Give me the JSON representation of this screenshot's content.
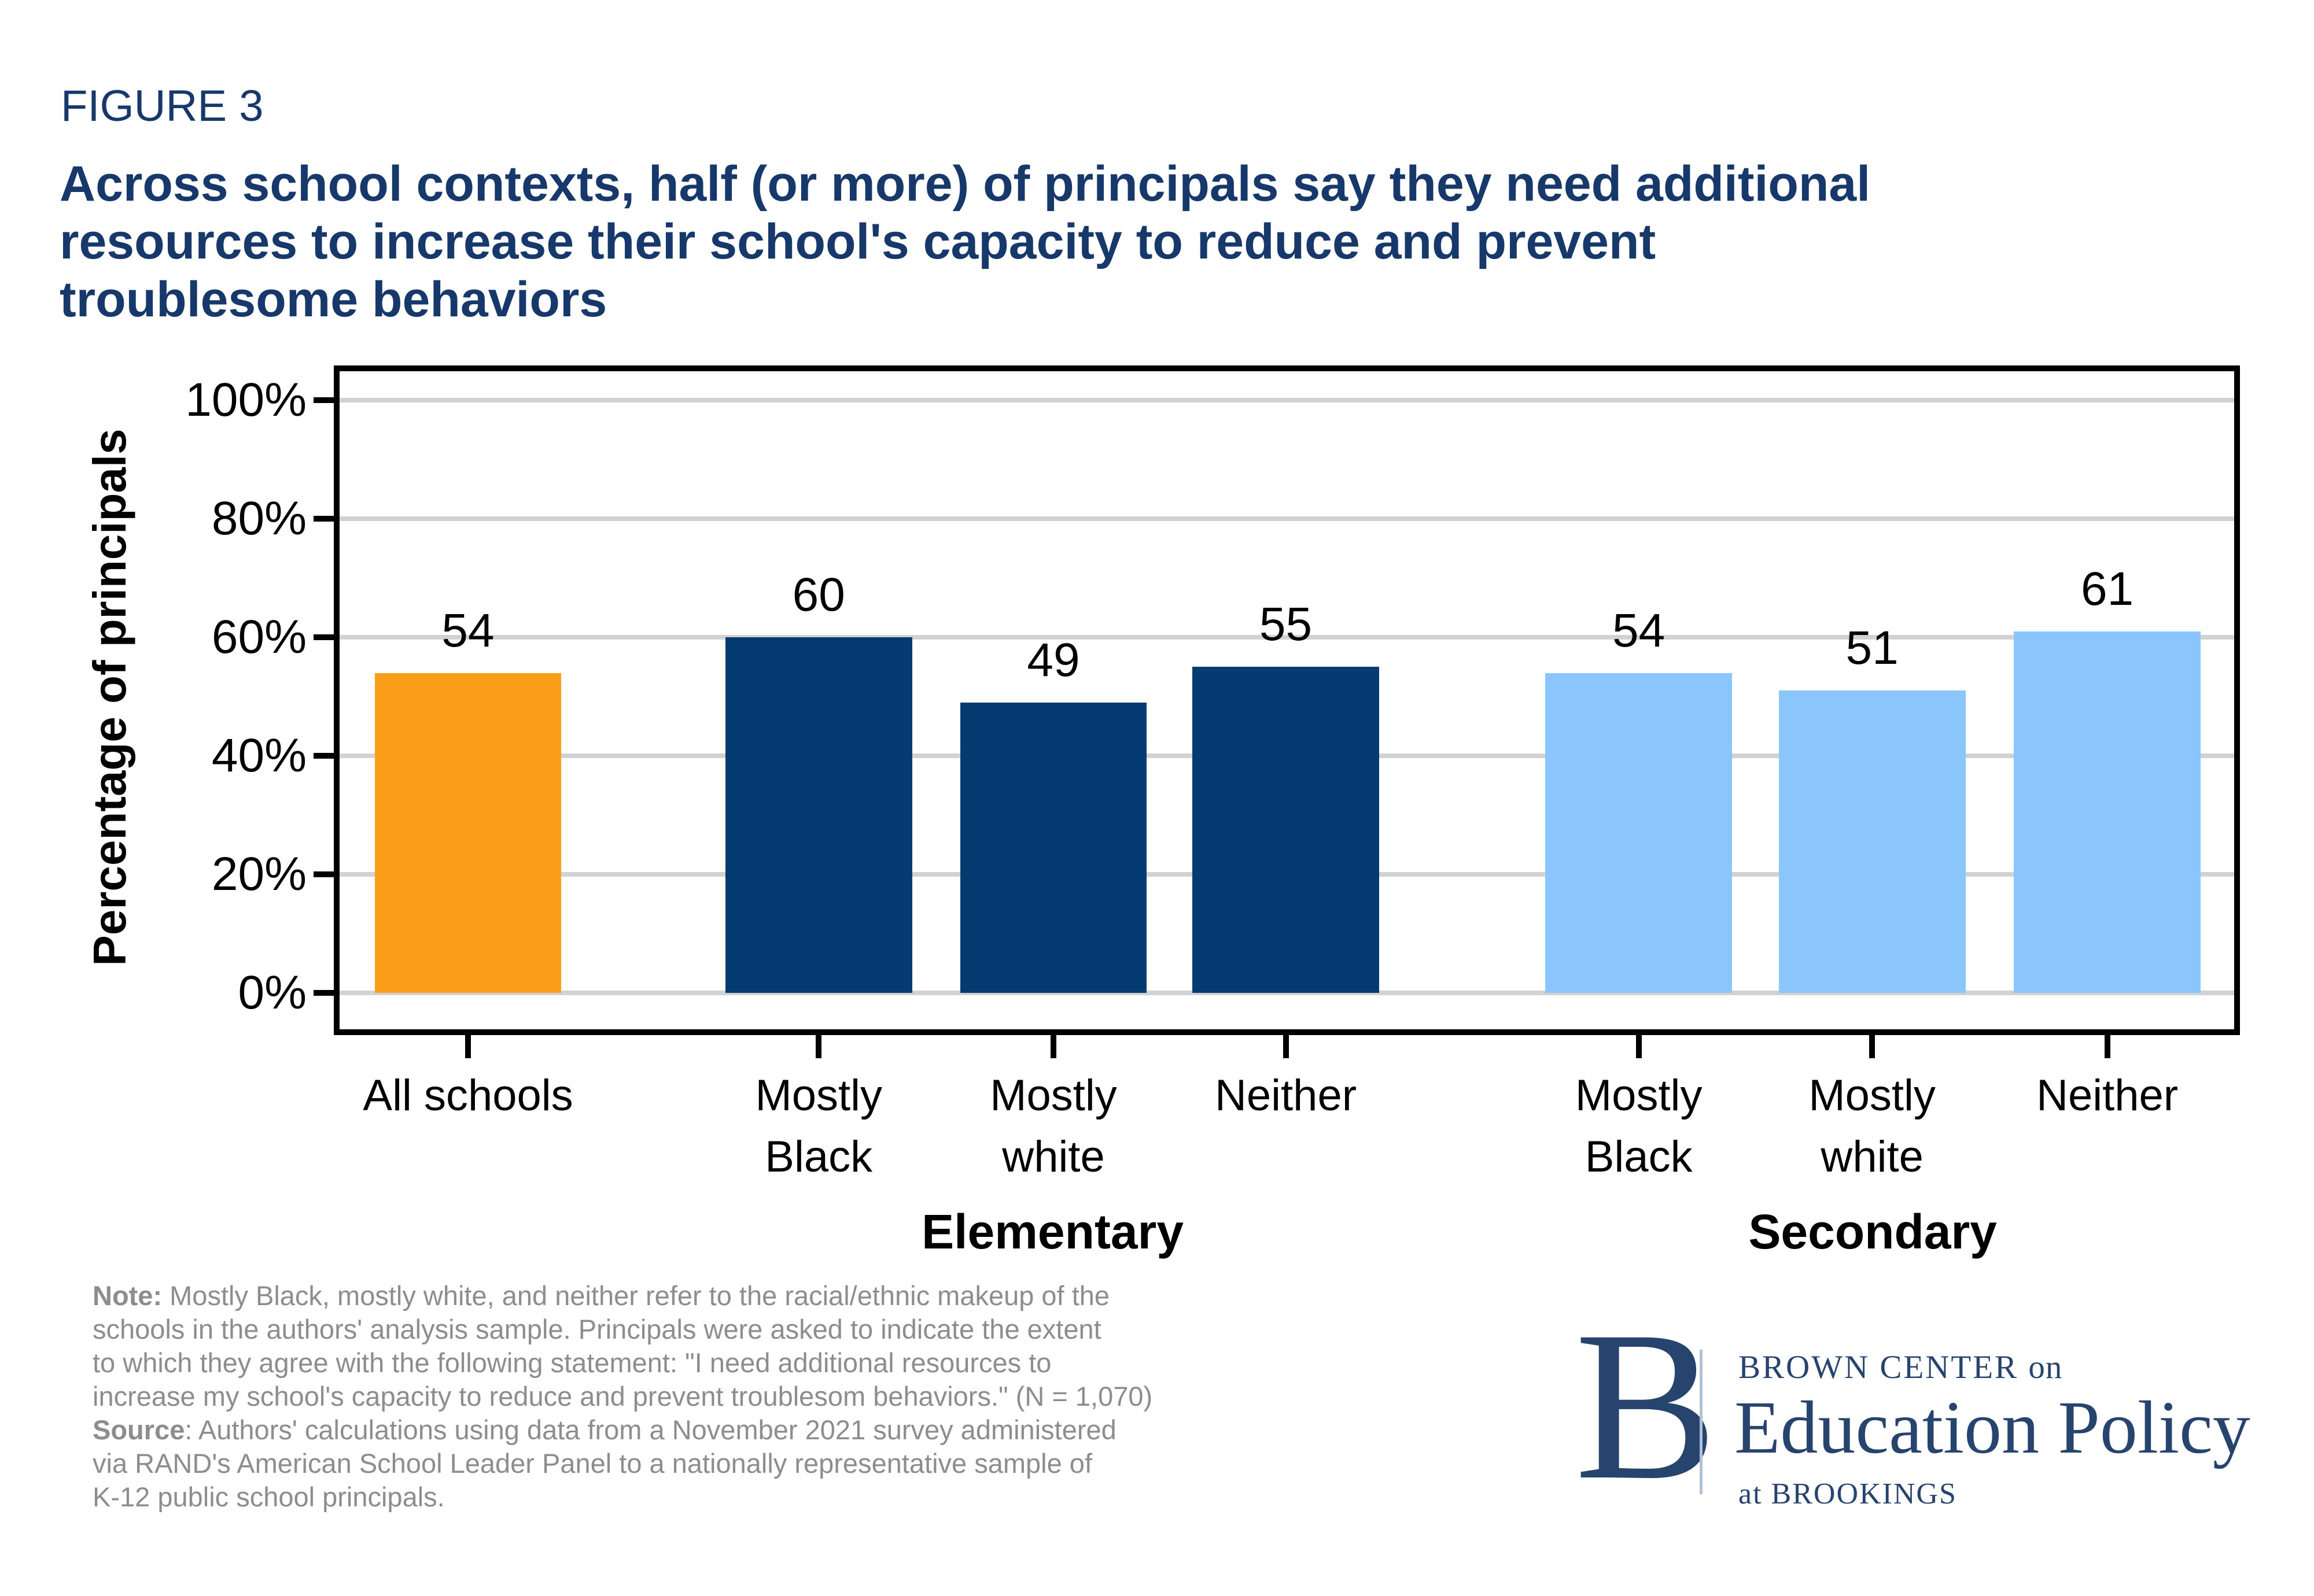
{
  "figure_label": "FIGURE 3",
  "title": {
    "lines": [
      "Across school contexts, half (or more) of principals say they need additional",
      "resources to increase their school's capacity to reduce and prevent",
      "troublesome behaviors"
    ],
    "color": "#17386B"
  },
  "chart_data": {
    "type": "bar",
    "title": "Across school contexts, half (or more) of principals say they need additional resources to increase their school's capacity to reduce and prevent troublesome behaviors",
    "ylabel": "Percentage of principals",
    "xlabel": "",
    "ylim": [
      0,
      100
    ],
    "yticks": [
      0,
      20,
      40,
      60,
      80,
      100
    ],
    "ytick_labels": [
      "0%",
      "20%",
      "40%",
      "60%",
      "80%",
      "100%"
    ],
    "grid": true,
    "legend_position": "none",
    "categories": [
      "All schools",
      "Mostly Black",
      "Mostly white",
      "Neither",
      "Mostly Black",
      "Mostly white",
      "Neither"
    ],
    "category_lines": [
      [
        "All schools"
      ],
      [
        "Mostly",
        "Black"
      ],
      [
        "Mostly",
        "white"
      ],
      [
        "Neither"
      ],
      [
        "Mostly",
        "Black"
      ],
      [
        "Mostly",
        "white"
      ],
      [
        "Neither"
      ]
    ],
    "values": [
      54,
      60,
      49,
      55,
      54,
      51,
      61
    ],
    "bar_colors": [
      "#FB9E19",
      "#043B71",
      "#043B71",
      "#043B71",
      "#8AC6FC",
      "#8AC6FC",
      "#8AC6FC"
    ],
    "value_labels_shown": true,
    "groups": [
      {
        "label": "Elementary",
        "bar_indexes": [
          1,
          2,
          3
        ]
      },
      {
        "label": "Secondary",
        "bar_indexes": [
          4,
          5,
          6
        ]
      }
    ],
    "colors": {
      "orange": "#FB9E19",
      "navy": "#043B71",
      "lightblue": "#8AC6FC",
      "gridline": "#D2D2D2",
      "axis": "#000000"
    }
  },
  "note": {
    "note_label": "Note:",
    "note_lines": [
      " Mostly Black, mostly white, and neither refer to the racial/ethnic makeup of the",
      "schools in the authors' analysis sample. Principals were asked to indicate the extent",
      "to which they agree with the following statement: \"I need additional resources to",
      "increase my school's capacity to reduce and prevent troublesom behaviors.\" (N = 1,070)"
    ],
    "source_label": "Source",
    "source_lines": [
      ": Authors' calculations using data from a November 2021 survey administered",
      "via RAND's American School Leader Panel to a nationally representative sample of",
      "K-12 public school principals."
    ]
  },
  "logo": {
    "mark": "B",
    "line1_caps": "BROWN CENTER ",
    "line1_small": "on",
    "line2": "Education Policy",
    "line3_prefix": "at ",
    "line3_caps": "BROOKINGS",
    "color": "#27446F",
    "divider_color": "#AEC2D6"
  }
}
